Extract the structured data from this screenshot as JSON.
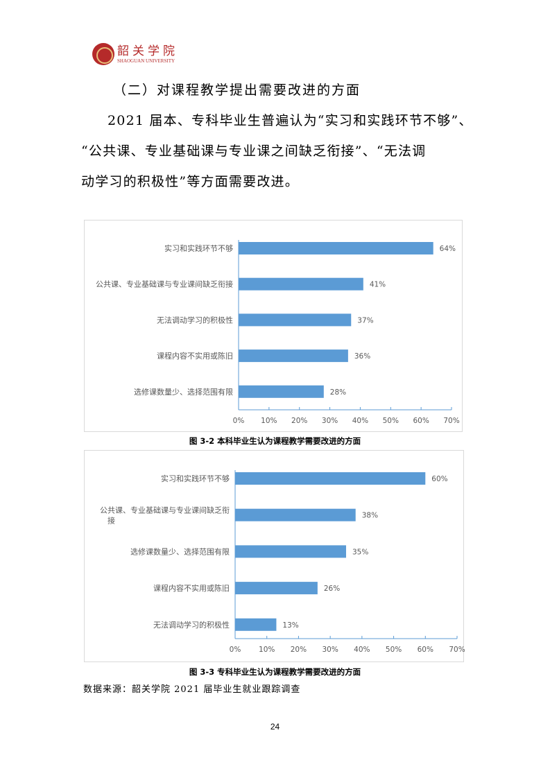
{
  "header": {
    "logo_cn": "韶关学院",
    "logo_en": "SHAOGUAN UNIVERSITY"
  },
  "section_title": "（二）对课程教学提出需要改进的方面",
  "paragraph": [
    "2021 届本、专科毕业生普遍认为“实习和实践环节不够”、",
    "“公共课、专业基础课与专业课之间缺乏衔接”、“无法调",
    "动学习的积极性”等方面需要改进。"
  ],
  "chart_data": [
    {
      "type": "bar",
      "orientation": "horizontal",
      "categories": [
        "实习和实践环节不够",
        "公共课、专业基础课与专业课间缺乏衔接",
        "无法调动学习的积极性",
        "课程内容不实用或陈旧",
        "选修课数量少、选择范围有限"
      ],
      "values": [
        64,
        41,
        37,
        36,
        28
      ],
      "data_labels": [
        "64%",
        "41%",
        "37%",
        "36%",
        "28%"
      ],
      "xlim": [
        0,
        70
      ],
      "xticks": [
        "0%",
        "10%",
        "20%",
        "30%",
        "40%",
        "50%",
        "60%",
        "70%"
      ],
      "grid": false,
      "bar_color": "#5b9bd5",
      "caption": "图 3-2  本科毕业生认为课程教学需要改进的方面"
    },
    {
      "type": "bar",
      "orientation": "horizontal",
      "categories": [
        "实习和实践环节不够",
        "公共课、专业基础课与专业课间缺乏衔接",
        "选修课数量少、选择范围有限",
        "课程内容不实用或陈旧",
        "无法调动学习的积极性"
      ],
      "values": [
        60,
        38,
        35,
        26,
        13
      ],
      "data_labels": [
        "60%",
        "38%",
        "35%",
        "26%",
        "13%"
      ],
      "xlim": [
        0,
        70
      ],
      "xticks": [
        "0%",
        "10%",
        "20%",
        "30%",
        "40%",
        "50%",
        "60%",
        "70%"
      ],
      "grid": false,
      "bar_color": "#5b9bd5",
      "caption": "图 3-3  专科毕业生认为课程教学需要改进的方面"
    }
  ],
  "source": "数据来源：韶关学院 2021 届毕业生就业跟踪调查",
  "page_number": "24"
}
